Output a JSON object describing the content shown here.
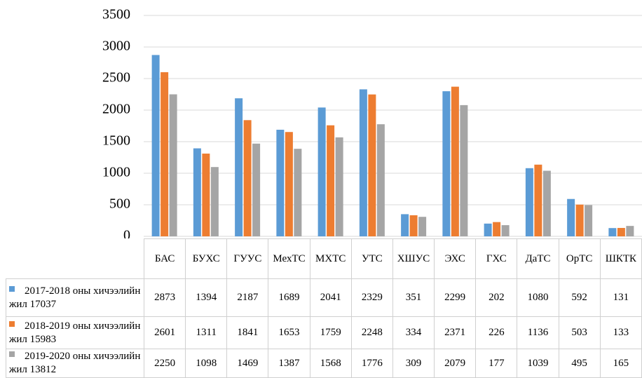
{
  "chart_data": {
    "type": "bar",
    "categories": [
      "БАС",
      "БУХС",
      "ГУУС",
      "МехТС",
      "МХТС",
      "УТС",
      "ХШУС",
      "ЭХС",
      "ГХС",
      "ДаТС",
      "ОрТС",
      "ШКТК"
    ],
    "series": [
      {
        "name": "2017-2018 оны хичээлийн жил 17037",
        "color": "#5b9bd5",
        "values": [
          2873,
          1394,
          2187,
          1689,
          2041,
          2329,
          351,
          2299,
          202,
          1080,
          592,
          131
        ]
      },
      {
        "name": "2018-2019 оны хичээлийн жил 15983",
        "color": "#ed7d31",
        "values": [
          2601,
          1311,
          1841,
          1653,
          1759,
          2248,
          334,
          2371,
          226,
          1136,
          503,
          133
        ]
      },
      {
        "name": "2019-2020 оны хичээлийн жил 13812",
        "color": "#a5a5a5",
        "values": [
          2250,
          1098,
          1469,
          1387,
          1568,
          1776,
          309,
          2079,
          177,
          1039,
          495,
          165
        ]
      }
    ],
    "ylim": [
      0,
      3500
    ],
    "yticks": [
      0,
      500,
      1000,
      1500,
      2000,
      2500,
      3000,
      3500
    ],
    "grid": true
  }
}
